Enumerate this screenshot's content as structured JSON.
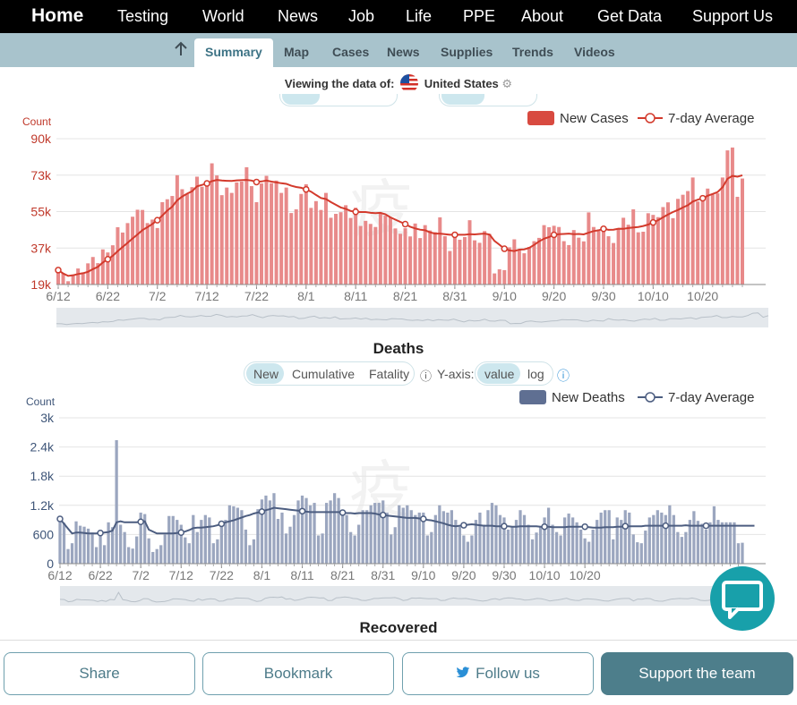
{
  "nav": {
    "items": [
      "Home",
      "Testing",
      "World",
      "News",
      "Job",
      "Life",
      "PPE",
      "About",
      "Get Data",
      "Support Us"
    ]
  },
  "subnav": {
    "tabs": [
      "Summary",
      "Map",
      "Cases",
      "News",
      "Supplies",
      "Trends",
      "Videos"
    ],
    "active": "Summary"
  },
  "viewing": {
    "label": "Viewing the data of:",
    "country": "United States"
  },
  "colors": {
    "cases": "#e06666",
    "cases_avg": "#d33a2c",
    "deaths": "#8a98b4",
    "deaths_avg": "#4c5d80",
    "accent": "#4d7e8b"
  },
  "deaths_section": {
    "title": "Deaths",
    "modes": [
      "New",
      "Cumulative",
      "Fatality"
    ],
    "active_mode": "New",
    "yaxis_label": "Y-axis:",
    "scales": [
      "value",
      "log"
    ],
    "active_scale": "value"
  },
  "recovered_title": "Recovered",
  "buttons": {
    "share": "Share",
    "bookmark": "Bookmark",
    "follow": "Follow us",
    "support": "Support the team"
  },
  "chart_data": [
    {
      "type": "bar",
      "title": "",
      "ylabel": "Count",
      "ylim": [
        19000,
        90000
      ],
      "yticks": [
        "19k",
        "37k",
        "55k",
        "73k",
        "90k"
      ],
      "x_ticks": [
        "6/12",
        "6/22",
        "7/2",
        "7/12",
        "7/22",
        "8/1",
        "8/11",
        "8/21",
        "8/31",
        "9/10",
        "9/20",
        "9/30",
        "10/10",
        "10/20"
      ],
      "legend": [
        "New Cases",
        "7-day Average"
      ],
      "legend_position": "top-right",
      "series": [
        {
          "name": "New Cases",
          "values": [
            25600,
            24500,
            20600,
            23900,
            26800,
            24900,
            29300,
            32400,
            29400,
            36100,
            34600,
            38100,
            46900,
            44300,
            48900,
            52000,
            55400,
            55300,
            48900,
            50600,
            46500,
            59100,
            60500,
            62100,
            72200,
            65400,
            63000,
            66400,
            71500,
            66600,
            67900,
            78000,
            72100,
            62500,
            66200,
            63600,
            68700,
            69100,
            76100,
            66900,
            59100,
            68200,
            71900,
            68300,
            69600,
            63600,
            66200,
            53800,
            55600,
            63100,
            67800,
            56300,
            59600,
            55300,
            63600,
            51500,
            53400,
            54200,
            57600,
            51400,
            56400,
            47500,
            50000,
            48500,
            47000,
            53800,
            52500,
            51800,
            46300,
            43700,
            46400,
            42400,
            48700,
            41600,
            47900,
            45300,
            44500,
            51700,
            42500,
            35300,
            44300,
            40800,
            42100,
            50300,
            40500,
            39300,
            45000,
            43600,
            24400,
            26400,
            26000,
            37100,
            41000,
            36000,
            34200,
            37300,
            40100,
            41700,
            47900,
            46900,
            47600,
            47000,
            40100,
            38200,
            45500,
            41800,
            40000,
            54100,
            47000,
            45100,
            47300,
            42500,
            39200,
            46200,
            51500,
            48100,
            55600,
            44400,
            44700,
            53700,
            52900,
            51800,
            56700,
            59000,
            51300,
            60700,
            62700,
            64500,
            71100,
            59400,
            59600,
            65700,
            62900,
            63400,
            71100,
            84300,
            85700,
            61700,
            70600
          ]
        },
        {
          "name": "7-day Average",
          "values": [
            26000,
            24400,
            23200,
            23500,
            24100,
            24500,
            25200,
            26500,
            27600,
            29700,
            31300,
            33000,
            35200,
            37300,
            39300,
            41400,
            43400,
            45500,
            46900,
            48500,
            50300,
            52600,
            55000,
            56900,
            60000,
            61800,
            63200,
            64400,
            66800,
            67500,
            68200,
            69300,
            69900,
            69600,
            69500,
            69400,
            69700,
            69800,
            69900,
            69600,
            68900,
            69200,
            69600,
            69100,
            68700,
            68300,
            68000,
            67100,
            66500,
            66100,
            65300,
            64200,
            62600,
            61100,
            60600,
            59100,
            57800,
            56500,
            55800,
            54800,
            54400,
            54300,
            54300,
            53900,
            53700,
            53900,
            53200,
            51700,
            50600,
            49500,
            48400,
            47100,
            46300,
            45700,
            45400,
            44400,
            43800,
            43800,
            43500,
            43200,
            43200,
            43200,
            43200,
            43500,
            43400,
            43600,
            43800,
            43300,
            40200,
            38400,
            36400,
            35600,
            35300,
            36000,
            36100,
            36800,
            38300,
            40000,
            41300,
            42100,
            43200,
            43500,
            43600,
            43800,
            43500,
            43600,
            43400,
            44200,
            45000,
            45400,
            46100,
            45600,
            45700,
            46200,
            46100,
            46500,
            46800,
            47000,
            47500,
            48200,
            49200,
            50300,
            51700,
            53100,
            54300,
            55300,
            56500,
            57600,
            59400,
            60300,
            61000,
            62200,
            63100,
            64000,
            66400,
            70500,
            71900,
            71500,
            72200
          ]
        }
      ]
    },
    {
      "type": "bar",
      "title": "",
      "ylabel": "Count",
      "ylim": [
        0,
        3000
      ],
      "yticks": [
        "0",
        "600",
        "1.2k",
        "1.8k",
        "2.4k",
        "3k"
      ],
      "x_ticks": [
        "6/12",
        "6/22",
        "7/2",
        "7/12",
        "7/22",
        "8/1",
        "8/11",
        "8/21",
        "8/31",
        "9/10",
        "9/20",
        "9/30",
        "10/10",
        "10/20"
      ],
      "legend": [
        "New Deaths",
        "7-day Average"
      ],
      "legend_position": "top-right",
      "series": [
        {
          "name": "New Deaths",
          "values": [
            870,
            840,
            300,
            420,
            870,
            780,
            760,
            720,
            640,
            340,
            600,
            380,
            850,
            750,
            2540,
            800,
            650,
            340,
            310,
            560,
            1050,
            1020,
            520,
            240,
            300,
            380,
            600,
            980,
            980,
            900,
            800,
            540,
            420,
            1000,
            650,
            900,
            1000,
            950,
            420,
            500,
            870,
            900,
            1200,
            1180,
            1150,
            1100,
            700,
            380,
            500,
            1120,
            1320,
            1400,
            1300,
            1450,
            920,
            1050,
            620,
            760,
            1000,
            1300,
            1400,
            1350,
            1200,
            1250,
            580,
            620,
            1250,
            1300,
            1450,
            1350,
            1100,
            1000,
            650,
            580,
            800,
            1100,
            1100,
            1200,
            1250,
            1250,
            1300,
            1050,
            600,
            750,
            1200,
            1150,
            1200,
            1100,
            1000,
            1050,
            1050,
            580,
            650,
            1000,
            1200,
            1080,
            1050,
            1100,
            900,
            760,
            580,
            450,
            580,
            900,
            1050,
            800,
            1100,
            1250,
            1200,
            1000,
            950,
            700,
            750,
            900,
            1100,
            1000,
            800,
            500,
            640,
            750,
            950,
            1150,
            800,
            650,
            580,
            950,
            1030,
            950,
            850,
            700,
            520,
            450,
            700,
            900,
            1050,
            1100,
            1100,
            500,
            950,
            900,
            1100,
            1050,
            600,
            440,
            420,
            680,
            950,
            1000,
            1100,
            1050,
            1000,
            1200,
            1000,
            650,
            550,
            650,
            900,
            1080,
            880,
            820,
            700,
            850,
            1180,
            900,
            850,
            850,
            850,
            850,
            420,
            430
          ]
        },
        {
          "name": "7-day Average",
          "values": [
            920,
            820,
            720,
            620,
            640,
            640,
            630,
            620,
            620,
            620,
            630,
            640,
            650,
            680,
            850,
            870,
            850,
            850,
            850,
            850,
            860,
            870,
            700,
            660,
            620,
            620,
            620,
            620,
            620,
            630,
            640,
            660,
            690,
            730,
            740,
            740,
            750,
            760,
            770,
            790,
            820,
            850,
            870,
            890,
            920,
            950,
            980,
            1000,
            1030,
            1050,
            1070,
            1100,
            1120,
            1150,
            1140,
            1130,
            1120,
            1110,
            1100,
            1090,
            1080,
            1070,
            1060,
            1060,
            1060,
            1060,
            1060,
            1060,
            1060,
            1060,
            1050,
            1040,
            1040,
            1030,
            1040,
            1040,
            1040,
            1040,
            1030,
            1010,
            1000,
            990,
            980,
            970,
            960,
            950,
            940,
            940,
            940,
            930,
            920,
            900,
            890,
            870,
            850,
            830,
            800,
            780,
            770,
            780,
            790,
            800,
            810,
            800,
            790,
            780,
            780,
            780,
            770,
            770,
            770,
            770,
            760,
            760,
            770,
            770,
            770,
            770,
            770,
            760,
            760,
            760,
            750,
            750,
            750,
            750,
            760,
            760,
            760,
            760,
            760,
            750,
            740,
            740,
            740,
            750,
            750,
            750,
            760,
            760,
            770,
            770,
            770,
            770,
            770,
            780,
            780,
            780,
            780,
            780,
            780,
            780,
            780,
            780,
            780,
            790,
            780,
            780,
            780,
            780,
            780,
            780,
            780,
            780,
            780,
            780,
            780,
            780,
            780,
            780,
            780,
            780,
            780
          ]
        }
      ]
    }
  ]
}
